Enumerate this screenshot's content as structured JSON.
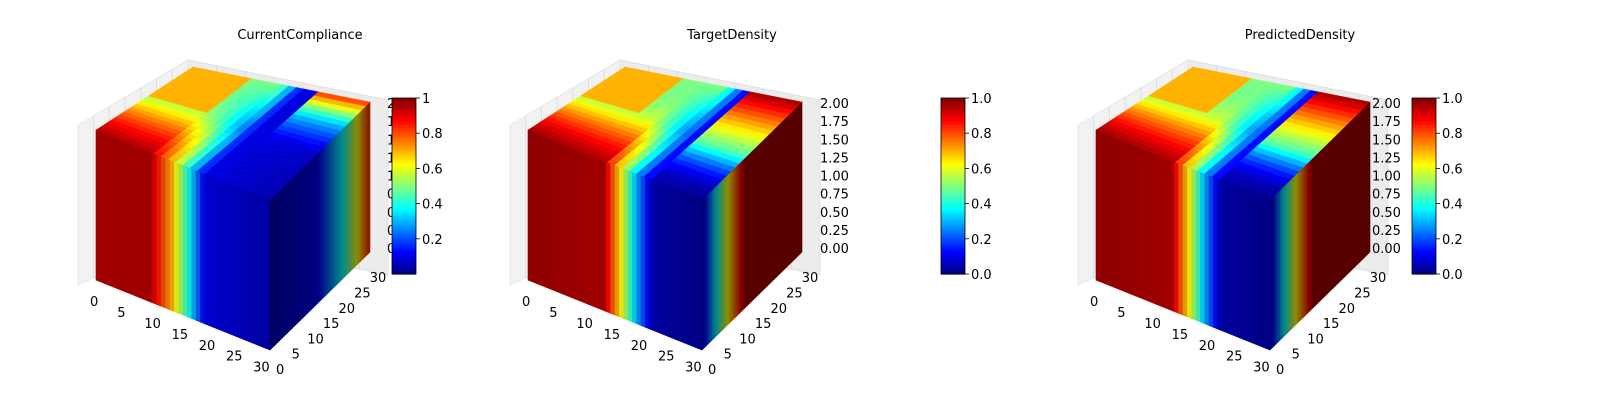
{
  "chart_data": [
    {
      "type": "3d-voxel-surface",
      "title": "CurrentCompliance",
      "x_ticks": [
        "0",
        "5",
        "10",
        "15",
        "20",
        "25",
        "30"
      ],
      "y_ticks": [
        "0",
        "5",
        "10",
        "15",
        "20",
        "25",
        "30"
      ],
      "z_ticks": [
        "0",
        "0.25",
        "0.5",
        "0.75",
        "1",
        "1.25",
        "1.5",
        "1.75",
        "2"
      ],
      "z_ticks_truncated": true,
      "z_range": [
        0,
        2
      ],
      "colorbar": {
        "colormap": "jet",
        "range": [
          0,
          1
        ],
        "ticks": [
          "0.2",
          "0.4",
          "0.6",
          "0.8",
          "1"
        ]
      },
      "front_face_profile": [
        {
          "x": 0,
          "v": 0.95
        },
        {
          "x": 10,
          "v": 0.95
        },
        {
          "x": 14,
          "v": 0.7
        },
        {
          "x": 17,
          "v": 0.4
        },
        {
          "x": 20,
          "v": 0.1
        },
        {
          "x": 32,
          "v": 0.05
        }
      ],
      "right_face_profile": [
        {
          "y": 0,
          "v": 0.05
        },
        {
          "y": 15,
          "v": 0.1
        },
        {
          "y": 24,
          "v": 0.4
        },
        {
          "y": 32,
          "v": 0.85
        }
      ]
    },
    {
      "type": "3d-voxel-surface",
      "title": "TargetDensity",
      "x_ticks": [
        "0",
        "5",
        "10",
        "15",
        "20",
        "25",
        "30"
      ],
      "y_ticks": [
        "0",
        "5",
        "10",
        "15",
        "20",
        "25",
        "30"
      ],
      "z_ticks": [
        "0.00",
        "0.25",
        "0.50",
        "0.75",
        "1.00",
        "1.25",
        "1.50",
        "1.75",
        "2.00"
      ],
      "z_range": [
        0,
        2
      ],
      "colorbar": {
        "colormap": "jet",
        "range": [
          0,
          1
        ],
        "ticks": [
          "0.0",
          "0.2",
          "0.4",
          "0.6",
          "0.8",
          "1.0"
        ]
      },
      "front_face_profile": [
        {
          "x": 0,
          "v": 0.97
        },
        {
          "x": 14,
          "v": 0.95
        },
        {
          "x": 17,
          "v": 0.65
        },
        {
          "x": 20,
          "v": 0.3
        },
        {
          "x": 23,
          "v": 0.05
        },
        {
          "x": 32,
          "v": 0.02
        }
      ],
      "right_face_profile": [
        {
          "y": 0,
          "v": 0.05
        },
        {
          "y": 8,
          "v": 0.6
        },
        {
          "y": 14,
          "v": 0.97
        },
        {
          "y": 32,
          "v": 0.97
        }
      ]
    },
    {
      "type": "3d-voxel-surface",
      "title": "PredictedDensity",
      "x_ticks": [
        "0",
        "5",
        "10",
        "15",
        "20",
        "25",
        "30"
      ],
      "y_ticks": [
        "0",
        "5",
        "10",
        "15",
        "20",
        "25",
        "30"
      ],
      "z_ticks": [
        "0.00",
        "0.25",
        "0.50",
        "0.75",
        "1.00",
        "1.25",
        "1.50",
        "1.75",
        "2.00"
      ],
      "z_range": [
        0,
        2
      ],
      "colorbar": {
        "colormap": "jet",
        "range": [
          0,
          1
        ],
        "ticks": [
          "0.0",
          "0.2",
          "0.4",
          "0.6",
          "0.8",
          "1.0"
        ]
      },
      "front_face_profile": [
        {
          "x": 0,
          "v": 0.97
        },
        {
          "x": 14,
          "v": 0.95
        },
        {
          "x": 17,
          "v": 0.65
        },
        {
          "x": 20,
          "v": 0.3
        },
        {
          "x": 23,
          "v": 0.05
        },
        {
          "x": 32,
          "v": 0.02
        }
      ],
      "right_face_profile": [
        {
          "y": 0,
          "v": 0.05
        },
        {
          "y": 8,
          "v": 0.6
        },
        {
          "y": 14,
          "v": 0.97
        },
        {
          "y": 32,
          "v": 0.97
        }
      ]
    }
  ]
}
